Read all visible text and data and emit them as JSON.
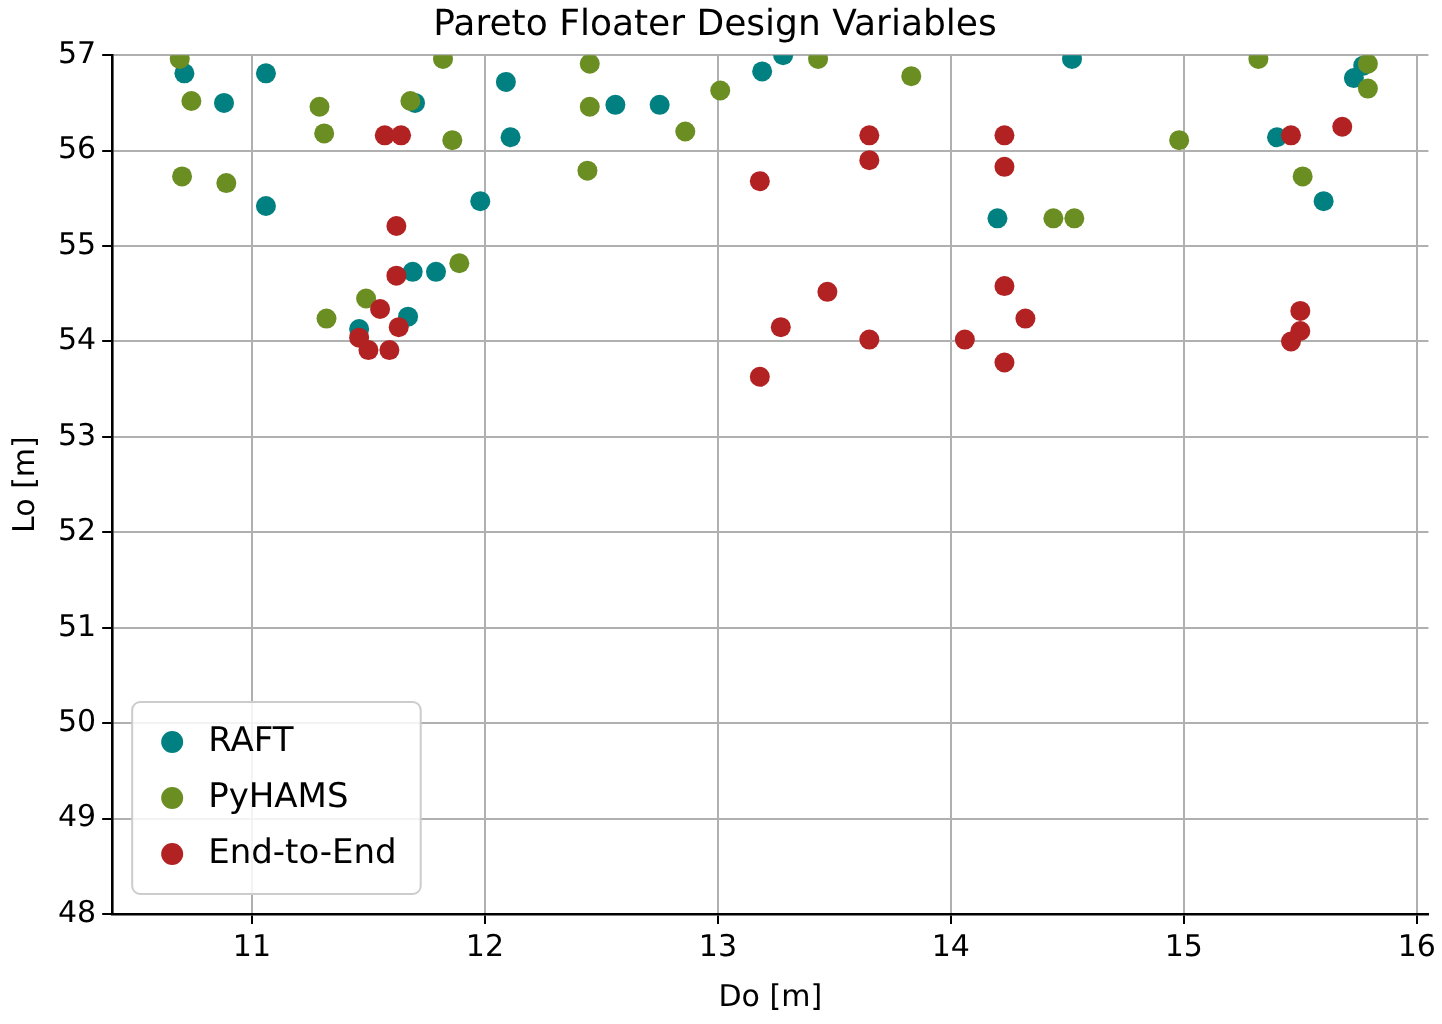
{
  "chart_data": {
    "type": "scatter",
    "title": "Pareto Floater Design Variables",
    "xlabel": "Do [m]",
    "ylabel": "Lo [m]",
    "xlim": [
      10.4,
      16.05
    ],
    "xticks": [
      11,
      12,
      13,
      14,
      15,
      16
    ],
    "ylim": [
      48,
      57
    ],
    "yticks": [
      48,
      49,
      50,
      51,
      52,
      53,
      54,
      55,
      56,
      57
    ],
    "grid": true,
    "legend": "bottom left",
    "marker": "circle",
    "series": [
      {
        "name": "RAFT",
        "color": "#008080",
        "x": [
          10.71,
          11.06,
          10.88,
          11.06,
          12.09,
          12.11,
          11.98,
          11.7,
          11.69,
          11.79,
          11.67,
          11.46,
          12.56,
          12.75,
          13.19,
          13.28,
          14.52,
          14.2,
          15.4,
          15.6,
          15.73,
          15.77
        ],
        "values": [
          56.81,
          56.81,
          56.5,
          55.42,
          56.72,
          56.14,
          55.47,
          56.5,
          54.73,
          54.73,
          54.26,
          54.13,
          56.48,
          56.48,
          56.83,
          57.0,
          56.96,
          55.29,
          56.14,
          55.47,
          56.76,
          56.89
        ]
      },
      {
        "name": "PyHAMS",
        "color": "#6b8e23",
        "x": [
          10.69,
          10.74,
          10.7,
          10.89,
          11.29,
          11.31,
          11.32,
          11.49,
          11.68,
          11.82,
          11.86,
          11.89,
          12.45,
          12.45,
          12.44,
          12.86,
          13.01,
          13.43,
          13.83,
          14.44,
          14.53,
          14.98,
          15.32,
          15.51,
          15.79,
          15.79
        ],
        "values": [
          56.96,
          56.52,
          55.73,
          55.66,
          56.46,
          56.18,
          54.24,
          54.45,
          56.52,
          56.96,
          56.11,
          54.82,
          56.91,
          56.46,
          55.79,
          56.2,
          56.63,
          56.96,
          56.78,
          55.29,
          55.29,
          56.11,
          56.96,
          55.73,
          56.65,
          56.91
        ]
      },
      {
        "name": "End-to-End",
        "color": "#b22222",
        "x": [
          11.57,
          11.64,
          11.62,
          11.62,
          11.55,
          11.63,
          11.46,
          11.5,
          11.59,
          13.18,
          13.65,
          13.65,
          13.47,
          13.27,
          13.18,
          13.65,
          14.06,
          14.23,
          14.23,
          14.23,
          14.32,
          14.23,
          15.46,
          15.68,
          15.5,
          15.5,
          15.46
        ],
        "values": [
          56.16,
          56.16,
          55.21,
          54.69,
          54.34,
          54.15,
          54.04,
          53.91,
          53.91,
          55.68,
          56.16,
          55.9,
          54.52,
          54.15,
          53.63,
          54.02,
          54.02,
          56.16,
          55.83,
          54.58,
          54.24,
          53.78,
          56.16,
          56.25,
          54.32,
          54.11,
          54.0
        ]
      }
    ]
  }
}
